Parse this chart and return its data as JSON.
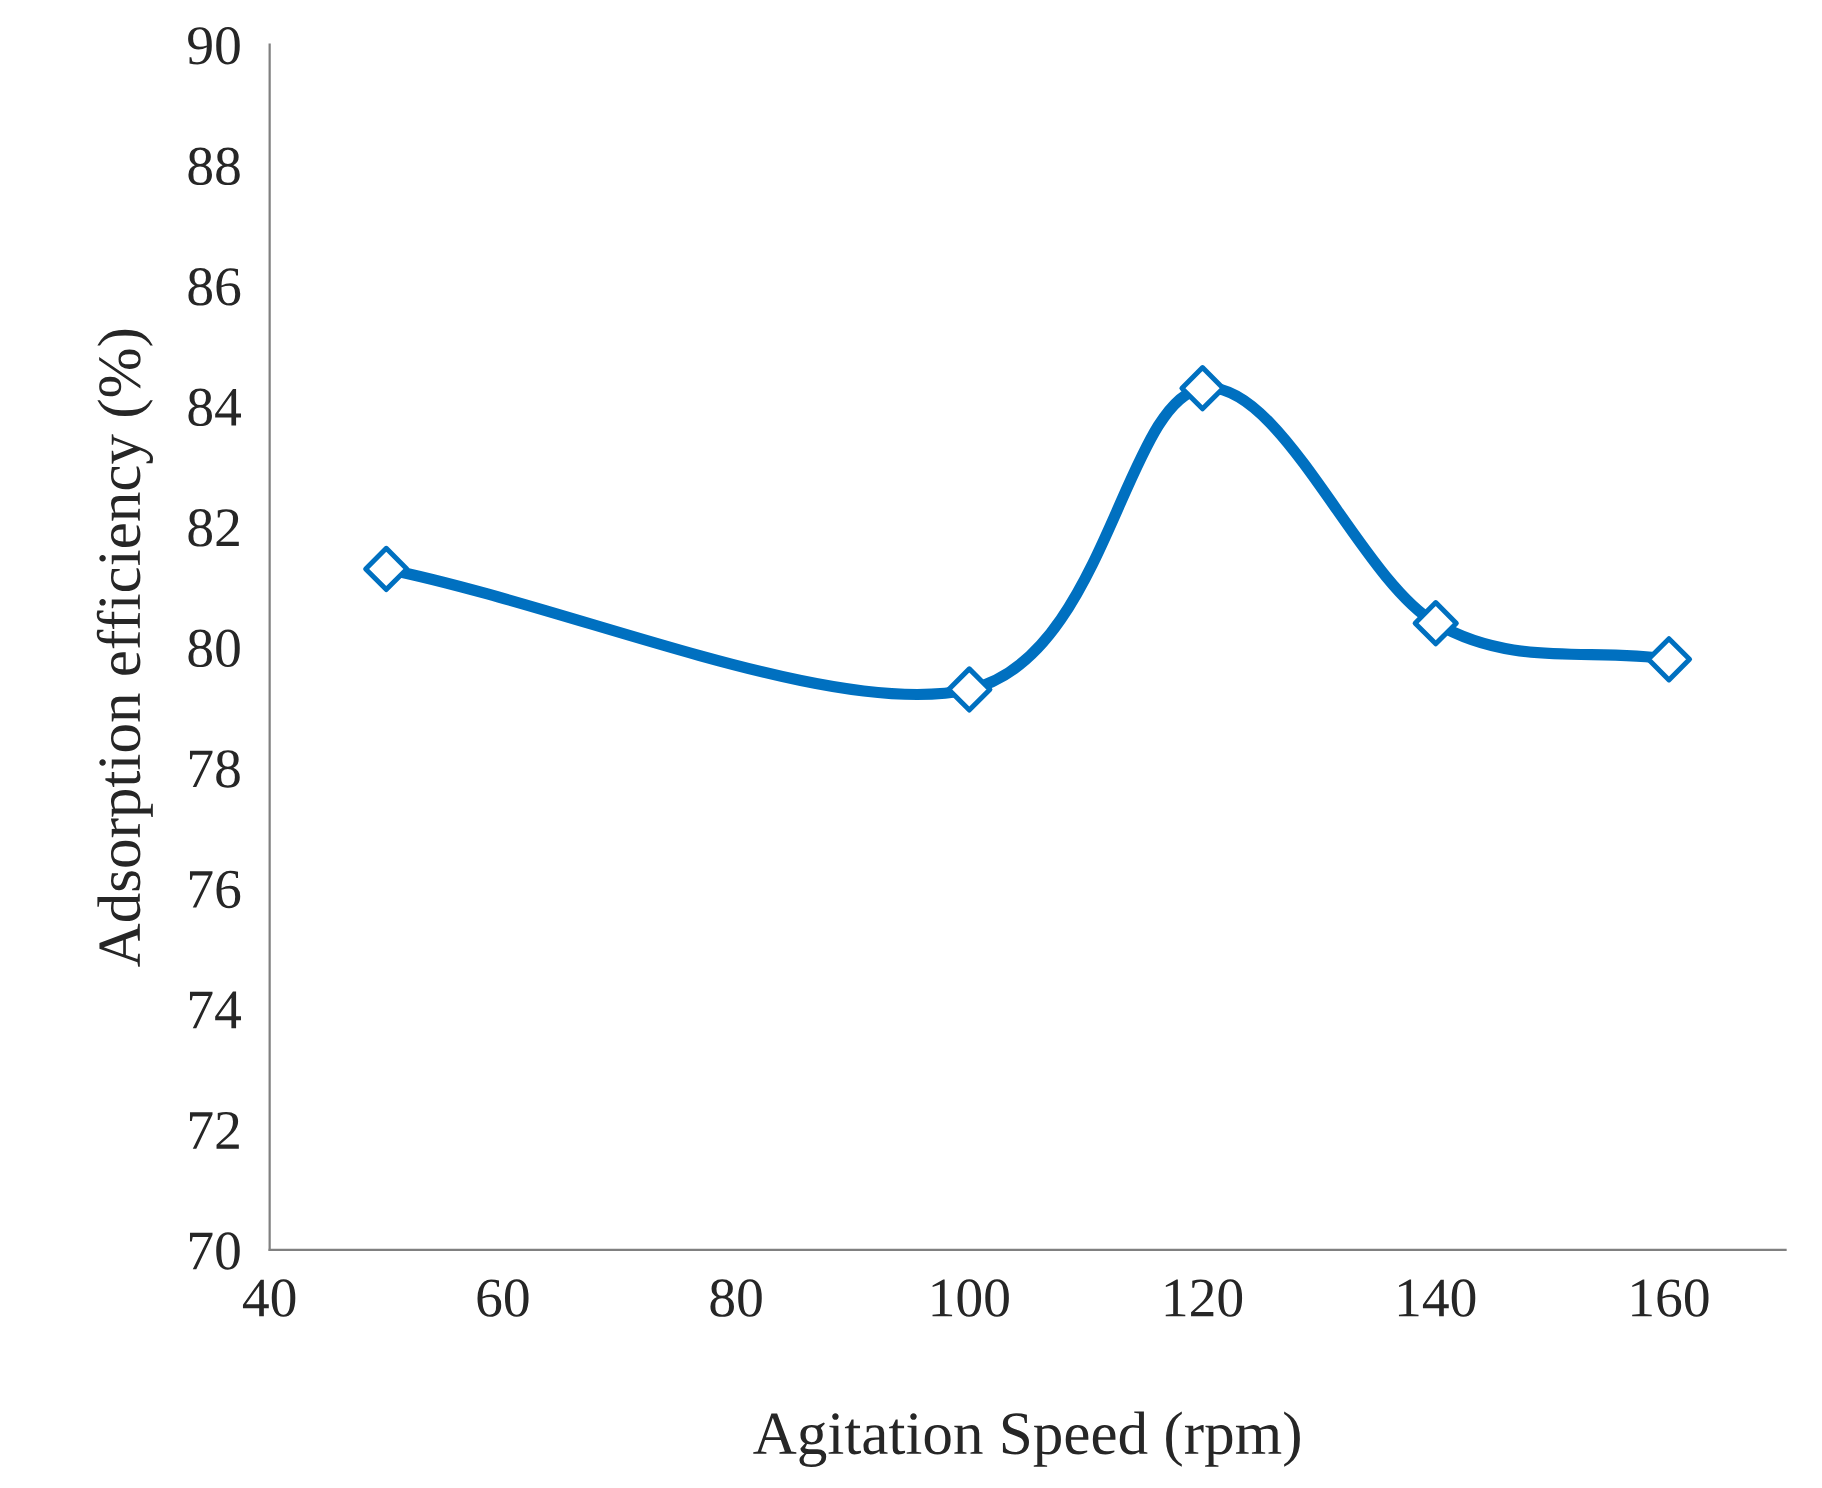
{
  "chart_data": {
    "type": "line",
    "xlabel": "Agitation Speed (rpm)",
    "ylabel": "Adsorption efficiency (%)",
    "x": [
      50,
      100,
      120,
      140,
      160
    ],
    "series": [
      {
        "color": "#0070c0",
        "values": [
          81.3,
          79.3,
          84.3,
          80.4,
          79.8
        ]
      }
    ],
    "marker": "diamond",
    "line_style": "solid",
    "xlim": [
      40,
      170
    ],
    "xticks": [
      40,
      60,
      80,
      100,
      120,
      140,
      160
    ],
    "ylim": [
      70,
      90
    ],
    "yticks": [
      70,
      72,
      74,
      76,
      78,
      80,
      82,
      84,
      86,
      88,
      90
    ],
    "grid": false
  }
}
